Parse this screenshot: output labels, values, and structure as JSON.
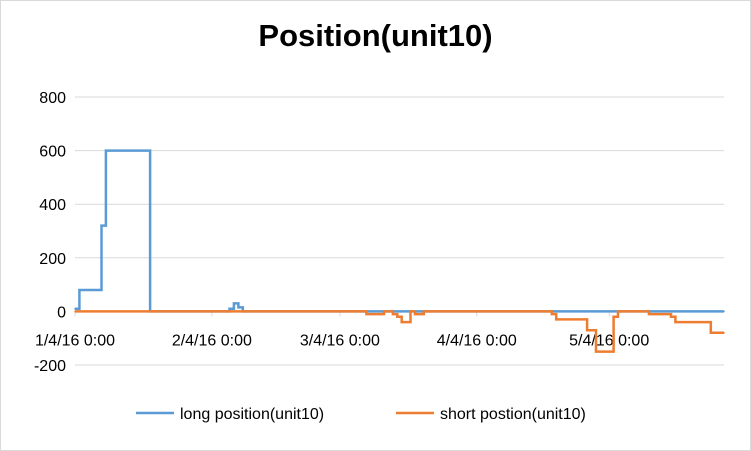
{
  "chart_data": {
    "type": "line",
    "title": "Position(unit10)",
    "xlabel": "",
    "ylabel": "",
    "ylim": [
      -200,
      800
    ],
    "y_ticks": [
      -200,
      0,
      200,
      400,
      600,
      800
    ],
    "x_range": [
      "2016-01-04",
      "2016-05-30"
    ],
    "x_ticks": [
      {
        "date": "2016-01-04",
        "label": "1/4/16 0:00"
      },
      {
        "date": "2016-02-04",
        "label": "2/4/16 0:00"
      },
      {
        "date": "2016-03-04",
        "label": "3/4/16 0:00"
      },
      {
        "date": "2016-04-04",
        "label": "4/4/16 0:00"
      },
      {
        "date": "2016-05-04",
        "label": "5/4/16 0:00"
      }
    ],
    "grid": true,
    "legend_position": "bottom",
    "step": true,
    "series": [
      {
        "name": "long position(unit10)",
        "color": "#5b9bd5",
        "points": [
          [
            "2016-01-04",
            10
          ],
          [
            "2016-01-05",
            80
          ],
          [
            "2016-01-10",
            320
          ],
          [
            "2016-01-11",
            600
          ],
          [
            "2016-01-21",
            0
          ],
          [
            "2016-02-08",
            10
          ],
          [
            "2016-02-09",
            30
          ],
          [
            "2016-02-10",
            15
          ],
          [
            "2016-02-11",
            0
          ],
          [
            "2016-05-30",
            0
          ]
        ]
      },
      {
        "name": "short postion(unit10)",
        "color": "#ed7d31",
        "points": [
          [
            "2016-01-04",
            0
          ],
          [
            "2016-03-10",
            -10
          ],
          [
            "2016-03-14",
            0
          ],
          [
            "2016-03-16",
            -10
          ],
          [
            "2016-03-17",
            -20
          ],
          [
            "2016-03-18",
            -40
          ],
          [
            "2016-03-20",
            0
          ],
          [
            "2016-03-21",
            -10
          ],
          [
            "2016-03-23",
            0
          ],
          [
            "2016-04-21",
            -10
          ],
          [
            "2016-04-22",
            -30
          ],
          [
            "2016-04-29",
            -70
          ],
          [
            "2016-05-01",
            -150
          ],
          [
            "2016-05-05",
            -20
          ],
          [
            "2016-05-06",
            0
          ],
          [
            "2016-05-13",
            -10
          ],
          [
            "2016-05-18",
            -20
          ],
          [
            "2016-05-19",
            -40
          ],
          [
            "2016-05-27",
            -80
          ],
          [
            "2016-05-30",
            -80
          ]
        ]
      }
    ]
  }
}
